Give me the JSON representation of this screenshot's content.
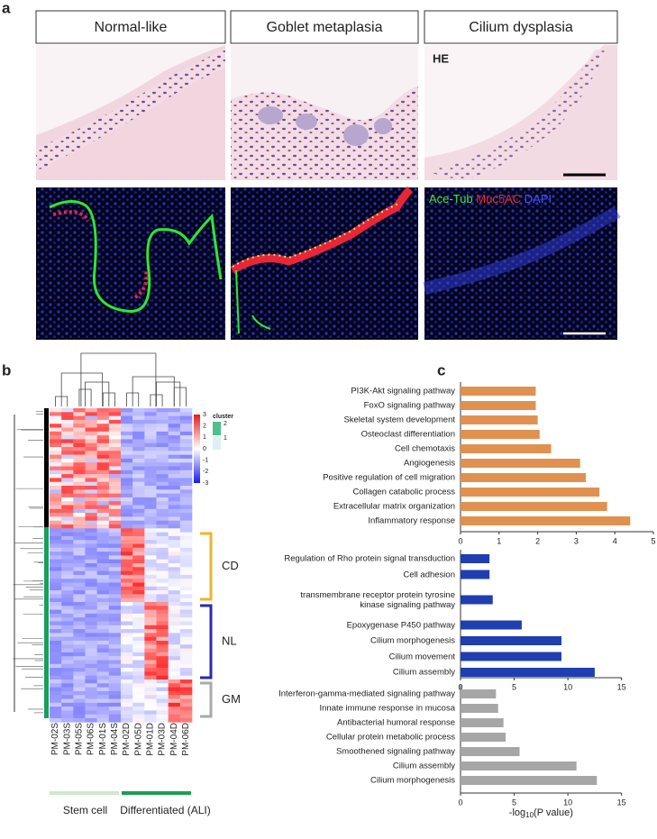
{
  "panel_a": {
    "label": "a",
    "columns": [
      "Normal-like",
      "Goblet metaplasia",
      "Cilium dysplasia"
    ],
    "he_label": "HE",
    "stain_labels": [
      "Ace-Tub",
      "Muc5AC",
      "DAPI"
    ]
  },
  "panel_b": {
    "label": "b",
    "samples": [
      "PM-02S",
      "PM-03S",
      "PM-05S",
      "PM-06S",
      "PM-01S",
      "PM-04S",
      "PM-02D",
      "PM-05D",
      "PM-01D",
      "PM-03D",
      "PM-04D",
      "PM-06D"
    ],
    "colorbar_ticks": [
      3,
      2,
      1,
      0,
      -1,
      -2,
      -3
    ],
    "cluster_title": "cluster",
    "cluster_ticks": [
      2,
      1
    ],
    "clusters": [
      "CD",
      "NL",
      "GM"
    ],
    "groups": [
      "Stem cell",
      "Differentiated (ALI)"
    ]
  },
  "panel_c": {
    "label": "c"
  },
  "chart_data": [
    {
      "type": "bar",
      "orientation": "horizontal",
      "color": "#e0914f",
      "categories": [
        "PI3K-Akt signaling pathway",
        "FoxO signaling pathway",
        "Skeletal system development",
        "Osteoclast differentiation",
        "Cell chemotaxis",
        "Angiogenesis",
        "Positive regulation of cell migration",
        "Collagen catabolic process",
        "Extracellular matrix organization",
        "Inflammatory response"
      ],
      "values": [
        1.95,
        1.95,
        2.0,
        2.05,
        2.35,
        3.1,
        3.25,
        3.6,
        3.8,
        4.4
      ],
      "xlim": [
        0,
        5
      ],
      "xticks": [
        0,
        1,
        2,
        3,
        4,
        5
      ]
    },
    {
      "type": "bar",
      "orientation": "horizontal",
      "color": "#1f3fb0",
      "categories": [
        "Regulation of Rho protein signal transduction",
        "Cell adhesion",
        "transmembrane receptor protein tyrosine kinase signaling pathway",
        "Epoxygenase P450 pathway",
        "Cilium morphogenesis",
        "Cilium movement",
        "Cilium assembly"
      ],
      "values": [
        2.7,
        2.7,
        3.0,
        5.7,
        9.4,
        9.4,
        12.5
      ],
      "xlim": [
        0,
        15
      ],
      "xticks": [
        0,
        5,
        10,
        15
      ]
    },
    {
      "type": "bar",
      "orientation": "horizontal",
      "color": "#a6a6a6",
      "categories": [
        "Interferon-gamma-mediated signaling pathway",
        "Innate immune response in mucosa",
        "Antibacterial humoral response",
        "Cellular protein metabolic process",
        "Smoothened signaling pathway",
        "Cilium assembly",
        "Cilium morphogenesis"
      ],
      "values": [
        3.3,
        3.5,
        4.0,
        4.2,
        5.5,
        10.8,
        12.7
      ],
      "xlim": [
        0,
        15
      ],
      "xticks": [
        0,
        5,
        10,
        15
      ],
      "x_label": [
        "-log",
        "10",
        "(P value)"
      ]
    }
  ]
}
